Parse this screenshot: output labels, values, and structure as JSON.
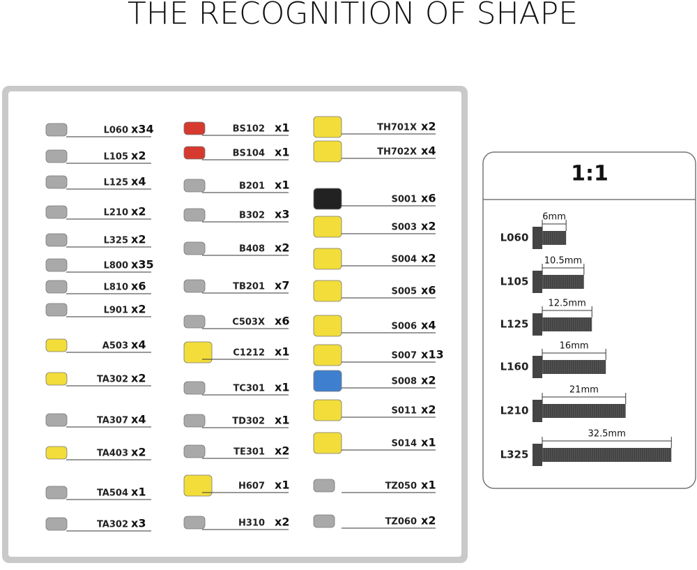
{
  "title": "THE RECOGNITION OF SHAPE",
  "parts": {
    "columns": [
      [
        {
          "code": "L060",
          "qty": "x34"
        },
        {
          "code": "L105",
          "qty": "x2"
        },
        {
          "code": "L125",
          "qty": "x4"
        },
        {
          "code": "L210",
          "qty": "x2"
        },
        {
          "code": "L325",
          "qty": "x2"
        },
        {
          "code": "L800",
          "qty": "x35"
        },
        {
          "code": "L810",
          "qty": "x6"
        },
        {
          "code": "L901",
          "qty": "x2"
        },
        {
          "code": "A503",
          "qty": "x4"
        },
        {
          "code": "TA302",
          "qty": "x2"
        },
        {
          "code": "TA307",
          "qty": "x4"
        },
        {
          "code": "TA403",
          "qty": "x2"
        },
        {
          "code": "TA504",
          "qty": "x1"
        },
        {
          "code": "TA302",
          "qty": "x3"
        }
      ],
      [
        {
          "code": "BS102",
          "qty": "x1"
        },
        {
          "code": "BS104",
          "qty": "x1"
        },
        {
          "code": "B201",
          "qty": "x1"
        },
        {
          "code": "B302",
          "qty": "x3"
        },
        {
          "code": "B408",
          "qty": "x2"
        },
        {
          "code": "TB201",
          "qty": "x7"
        },
        {
          "code": "C503X",
          "qty": "x6"
        },
        {
          "code": "C1212",
          "qty": "x1"
        },
        {
          "code": "TC301",
          "qty": "x1"
        },
        {
          "code": "TD302",
          "qty": "x1"
        },
        {
          "code": "TE301",
          "qty": "x2"
        },
        {
          "code": "H607",
          "qty": "x1"
        },
        {
          "code": "H310",
          "qty": "x2"
        }
      ],
      [
        {
          "code": "TH701X",
          "qty": "x2"
        },
        {
          "code": "TH702X",
          "qty": "x4"
        },
        {
          "code": "S001",
          "qty": "x6"
        },
        {
          "code": "S003",
          "qty": "x2"
        },
        {
          "code": "S004",
          "qty": "x2"
        },
        {
          "code": "S005",
          "qty": "x6"
        },
        {
          "code": "S006",
          "qty": "x4"
        },
        {
          "code": "S007",
          "qty": "x13"
        },
        {
          "code": "S008",
          "qty": "x2"
        },
        {
          "code": "S011",
          "qty": "x2"
        },
        {
          "code": "S014",
          "qty": "x1"
        },
        {
          "code": "TZ050",
          "qty": "x1"
        },
        {
          "code": "TZ060",
          "qty": "x2"
        }
      ]
    ]
  },
  "scale": {
    "title": "1:1",
    "rows": [
      {
        "code": "L060",
        "length": {
          "value": 6,
          "label": "6mm"
        }
      },
      {
        "code": "L105",
        "length": {
          "value": 10.5,
          "label": "10.5mm"
        }
      },
      {
        "code": "L125",
        "length": {
          "value": 12.5,
          "label": "12.5mm"
        }
      },
      {
        "code": "L160",
        "length": {
          "value": 16,
          "label": "16mm"
        }
      },
      {
        "code": "L210",
        "length": {
          "value": 21,
          "label": "21mm"
        }
      },
      {
        "code": "L325",
        "length": {
          "value": 32.5,
          "label": "32.5mm"
        }
      }
    ]
  }
}
